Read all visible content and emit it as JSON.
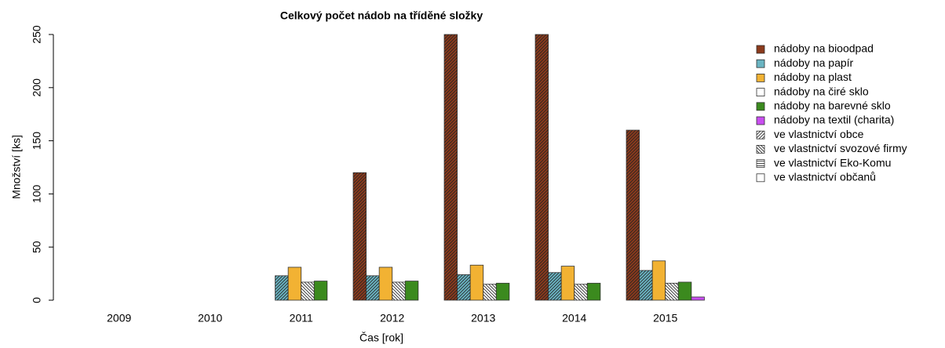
{
  "chart_data": {
    "type": "bar",
    "title": "Celkový počet nádob na tříděné složky",
    "x_label": "Čas [rok]",
    "y_label": "Množství [ks]",
    "categories": [
      "2009",
      "2010",
      "2011",
      "2012",
      "2013",
      "2014",
      "2015"
    ],
    "series": [
      {
        "name": "nádoby na bioodpad",
        "color": "#8b3a1c",
        "pattern": "diagonal",
        "values": [
          null,
          null,
          0,
          120,
          250,
          250,
          160
        ]
      },
      {
        "name": "nádoby na papír",
        "color": "#6ab4c2",
        "pattern": "diagonal",
        "values": [
          null,
          null,
          23,
          23,
          24,
          26,
          28
        ]
      },
      {
        "name": "nádoby na plast",
        "color": "#f2b233",
        "pattern": "none",
        "values": [
          null,
          null,
          31,
          31,
          33,
          32,
          37
        ]
      },
      {
        "name": "nádoby na čiré sklo",
        "color": "#ffffff",
        "pattern": "backslash",
        "values": [
          null,
          null,
          17,
          17,
          15,
          15,
          16
        ]
      },
      {
        "name": "nádoby na barevné sklo",
        "color": "#3b8a1e",
        "pattern": "none",
        "values": [
          null,
          null,
          18,
          18,
          16,
          16,
          17
        ]
      },
      {
        "name": "nádoby na textil (charita)",
        "color": "#c94ef0",
        "pattern": "none",
        "values": [
          null,
          null,
          0,
          0,
          0,
          0,
          3
        ]
      }
    ],
    "pattern_legend": [
      {
        "label": "ve vlastnictví obce",
        "pattern": "diagonal"
      },
      {
        "label": "ve vlastnictví svozové firmy",
        "pattern": "backslash"
      },
      {
        "label": "ve vlastnictví Eko-Komu",
        "pattern": "horizontal"
      },
      {
        "label": "ve vlastnictví občanů",
        "pattern": "none"
      }
    ],
    "ylim": [
      0,
      250
    ],
    "yticks": [
      0,
      50,
      100,
      150,
      200,
      250
    ]
  }
}
